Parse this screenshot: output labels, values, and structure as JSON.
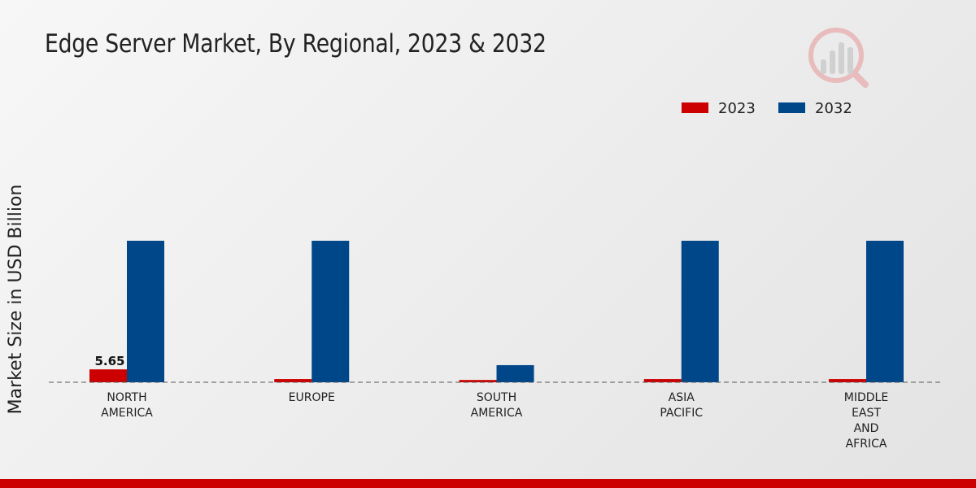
{
  "title": "Edge Server Market, By Regional, 2023 & 2032",
  "chart_data": {
    "type": "bar",
    "title": "Edge Server Market, By Regional, 2023 & 2032",
    "ylabel": "Market Size in USD Billion",
    "xlabel": "",
    "categories": [
      [
        "NORTH",
        "AMERICA"
      ],
      [
        "EUROPE"
      ],
      [
        "SOUTH",
        "AMERICA"
      ],
      [
        "ASIA",
        "PACIFIC"
      ],
      [
        "MIDDLE",
        "EAST",
        "AND",
        "AFRICA"
      ]
    ],
    "series": [
      {
        "name": "2023",
        "color": "#cc0000",
        "values": [
          5.65,
          1.4,
          1.0,
          1.4,
          1.4
        ]
      },
      {
        "name": "2032",
        "color": "#00478a",
        "values": [
          62.0,
          62.0,
          7.5,
          62.0,
          62.0
        ]
      }
    ],
    "data_labels": [
      {
        "series": 0,
        "index": 0,
        "text": "5.65"
      }
    ],
    "ylim": [
      0,
      70
    ],
    "grid": false,
    "legend_position": "top-right",
    "baseline": "dashed"
  }
}
